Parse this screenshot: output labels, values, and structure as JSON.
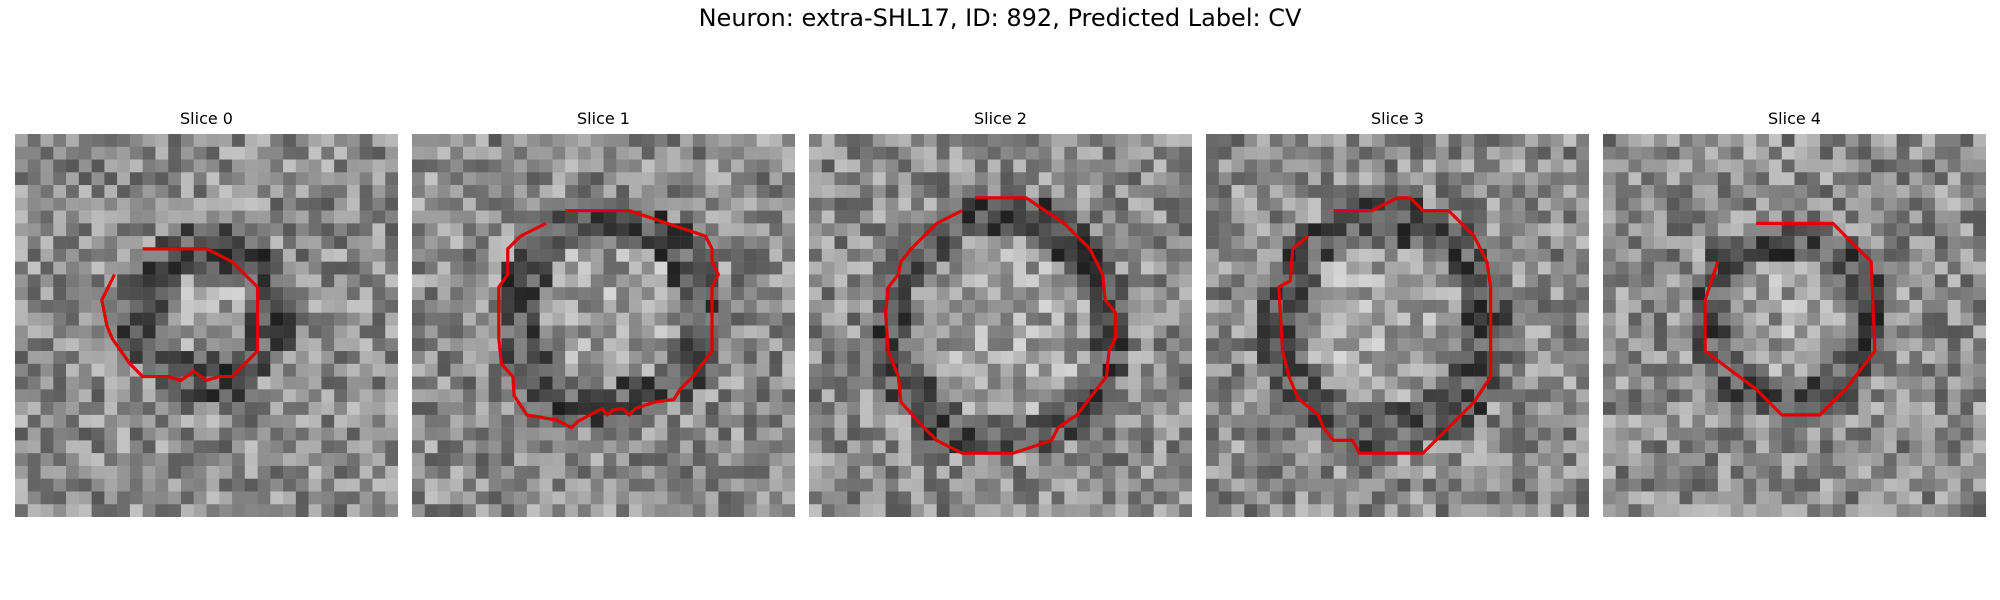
{
  "figure": {
    "title": "Neuron: extra-SHL17, ID: 892, Predicted Label: CV"
  },
  "palette": {
    "contour": "#e00000"
  },
  "panels": [
    {
      "title": "Slice 0"
    },
    {
      "title": "Slice 1"
    },
    {
      "title": "Slice 2"
    },
    {
      "title": "Slice 3"
    },
    {
      "title": "Slice 4"
    }
  ]
}
